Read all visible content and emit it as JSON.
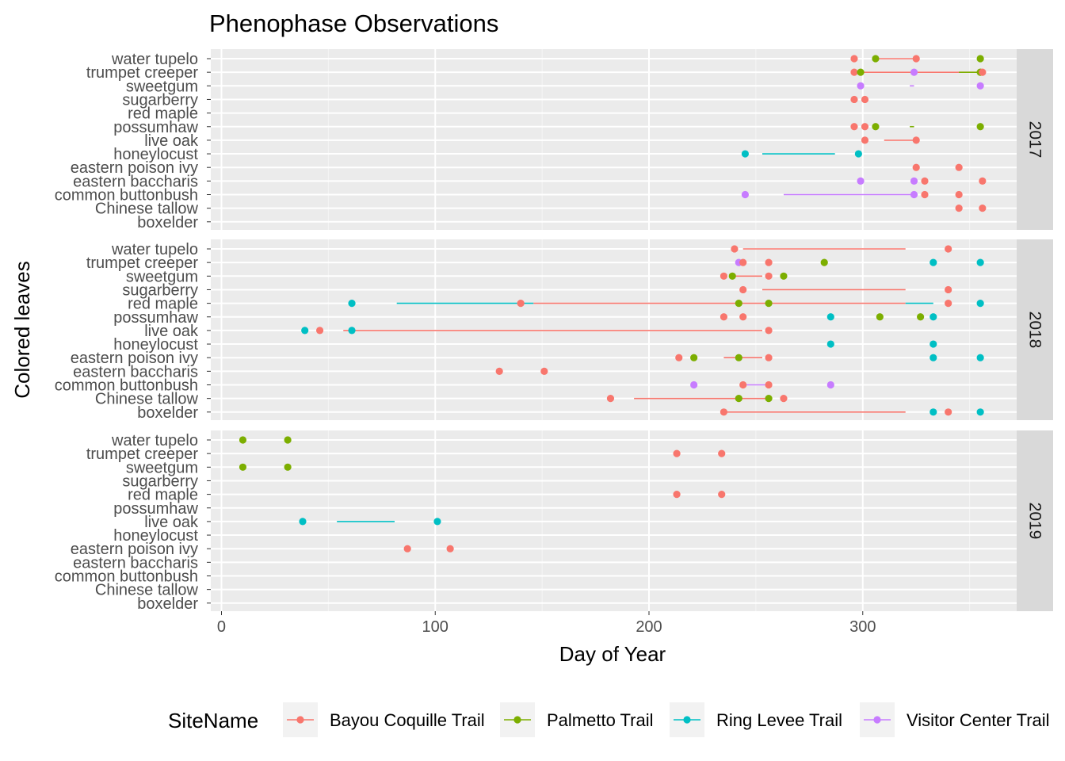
{
  "chart_data": {
    "type": "scatter",
    "title": "Phenophase Observations",
    "xlabel": "Day of Year",
    "ylabel": "Colored leaves",
    "xlim": [
      -5,
      372
    ],
    "xticks": [
      0,
      100,
      200,
      300
    ],
    "grid": true,
    "legend": {
      "title": "SiteName",
      "placement": "bottom",
      "entries": [
        {
          "name": "Bayou Coquille Trail",
          "color": "#F8766D"
        },
        {
          "name": "Palmetto Trail",
          "color": "#7CAE00"
        },
        {
          "name": "Ring Levee Trail",
          "color": "#00BFC4"
        },
        {
          "name": "Visitor Center Trail",
          "color": "#C77CFF"
        }
      ]
    },
    "categories": [
      "water tupelo",
      "trumpet creeper",
      "sweetgum",
      "sugarberry",
      "red maple",
      "possumhaw",
      "live oak",
      "honeylocust",
      "eastern poison ivy",
      "eastern baccharis",
      "common buttonbush",
      "Chinese tallow",
      "boxelder"
    ],
    "panels": [
      {
        "label": "2017",
        "points": [
          {
            "c": 0,
            "x": 296,
            "s": 0
          },
          {
            "c": 0,
            "x": 306,
            "s": 1
          },
          {
            "c": 0,
            "x": 325,
            "s": 0
          },
          {
            "c": 0,
            "x": 355,
            "s": 1
          },
          {
            "c": 1,
            "x": 296,
            "s": 0
          },
          {
            "c": 1,
            "x": 299,
            "s": 1
          },
          {
            "c": 1,
            "x": 324,
            "s": 3
          },
          {
            "c": 1,
            "x": 355,
            "s": 1
          },
          {
            "c": 1,
            "x": 356,
            "s": 0
          },
          {
            "c": 2,
            "x": 299,
            "s": 3
          },
          {
            "c": 2,
            "x": 355,
            "s": 3
          },
          {
            "c": 3,
            "x": 296,
            "s": 0
          },
          {
            "c": 3,
            "x": 301,
            "s": 0
          },
          {
            "c": 5,
            "x": 296,
            "s": 0
          },
          {
            "c": 5,
            "x": 301,
            "s": 0
          },
          {
            "c": 5,
            "x": 306,
            "s": 1
          },
          {
            "c": 5,
            "x": 355,
            "s": 1
          },
          {
            "c": 6,
            "x": 301,
            "s": 0
          },
          {
            "c": 6,
            "x": 325,
            "s": 0
          },
          {
            "c": 7,
            "x": 245,
            "s": 2
          },
          {
            "c": 7,
            "x": 298,
            "s": 2
          },
          {
            "c": 8,
            "x": 325,
            "s": 0
          },
          {
            "c": 8,
            "x": 345,
            "s": 0
          },
          {
            "c": 9,
            "x": 299,
            "s": 3
          },
          {
            "c": 9,
            "x": 324,
            "s": 3
          },
          {
            "c": 9,
            "x": 329,
            "s": 0
          },
          {
            "c": 9,
            "x": 356,
            "s": 0
          },
          {
            "c": 10,
            "x": 245,
            "s": 3
          },
          {
            "c": 10,
            "x": 324,
            "s": 3
          },
          {
            "c": 10,
            "x": 329,
            "s": 0
          },
          {
            "c": 10,
            "x": 345,
            "s": 0
          },
          {
            "c": 11,
            "x": 345,
            "s": 0
          },
          {
            "c": 11,
            "x": 356,
            "s": 0
          }
        ],
        "segments": [
          {
            "c": 0,
            "x1": 306,
            "x2": 325,
            "s": 0
          },
          {
            "c": 1,
            "x1": 299,
            "x2": 355,
            "s": 0
          },
          {
            "c": 1,
            "x1": 345,
            "x2": 355,
            "s": 1
          },
          {
            "c": 2,
            "x1": 322,
            "x2": 324,
            "s": 3
          },
          {
            "c": 5,
            "x1": 322,
            "x2": 324,
            "s": 1
          },
          {
            "c": 6,
            "x1": 310,
            "x2": 325,
            "s": 0
          },
          {
            "c": 7,
            "x1": 253,
            "x2": 287,
            "s": 2
          },
          {
            "c": 10,
            "x1": 263,
            "x2": 324,
            "s": 3
          }
        ]
      },
      {
        "label": "2018",
        "points": [
          {
            "c": 0,
            "x": 240,
            "s": 0
          },
          {
            "c": 0,
            "x": 340,
            "s": 0
          },
          {
            "c": 1,
            "x": 242,
            "s": 3
          },
          {
            "c": 1,
            "x": 244,
            "s": 0
          },
          {
            "c": 1,
            "x": 256,
            "s": 0
          },
          {
            "c": 1,
            "x": 282,
            "s": 1
          },
          {
            "c": 1,
            "x": 333,
            "s": 2
          },
          {
            "c": 1,
            "x": 355,
            "s": 2
          },
          {
            "c": 2,
            "x": 235,
            "s": 0
          },
          {
            "c": 2,
            "x": 239,
            "s": 1
          },
          {
            "c": 2,
            "x": 256,
            "s": 0
          },
          {
            "c": 2,
            "x": 263,
            "s": 1
          },
          {
            "c": 3,
            "x": 244,
            "s": 0
          },
          {
            "c": 3,
            "x": 340,
            "s": 0
          },
          {
            "c": 4,
            "x": 61,
            "s": 2
          },
          {
            "c": 4,
            "x": 140,
            "s": 0
          },
          {
            "c": 4,
            "x": 242,
            "s": 1
          },
          {
            "c": 4,
            "x": 256,
            "s": 1
          },
          {
            "c": 4,
            "x": 340,
            "s": 0
          },
          {
            "c": 4,
            "x": 355,
            "s": 2
          },
          {
            "c": 5,
            "x": 235,
            "s": 0
          },
          {
            "c": 5,
            "x": 244,
            "s": 0
          },
          {
            "c": 5,
            "x": 285,
            "s": 2
          },
          {
            "c": 5,
            "x": 308,
            "s": 1
          },
          {
            "c": 5,
            "x": 327,
            "s": 1
          },
          {
            "c": 5,
            "x": 333,
            "s": 2
          },
          {
            "c": 6,
            "x": 39,
            "s": 2
          },
          {
            "c": 6,
            "x": 46,
            "s": 0
          },
          {
            "c": 6,
            "x": 61,
            "s": 2
          },
          {
            "c": 6,
            "x": 256,
            "s": 0
          },
          {
            "c": 7,
            "x": 285,
            "s": 2
          },
          {
            "c": 7,
            "x": 333,
            "s": 2
          },
          {
            "c": 8,
            "x": 214,
            "s": 0
          },
          {
            "c": 8,
            "x": 221,
            "s": 1
          },
          {
            "c": 8,
            "x": 242,
            "s": 1
          },
          {
            "c": 8,
            "x": 256,
            "s": 0
          },
          {
            "c": 8,
            "x": 333,
            "s": 2
          },
          {
            "c": 8,
            "x": 355,
            "s": 2
          },
          {
            "c": 9,
            "x": 130,
            "s": 0
          },
          {
            "c": 9,
            "x": 151,
            "s": 0
          },
          {
            "c": 10,
            "x": 221,
            "s": 3
          },
          {
            "c": 10,
            "x": 244,
            "s": 0
          },
          {
            "c": 10,
            "x": 256,
            "s": 0
          },
          {
            "c": 10,
            "x": 285,
            "s": 3
          },
          {
            "c": 11,
            "x": 182,
            "s": 0
          },
          {
            "c": 11,
            "x": 242,
            "s": 1
          },
          {
            "c": 11,
            "x": 256,
            "s": 1
          },
          {
            "c": 11,
            "x": 263,
            "s": 0
          },
          {
            "c": 12,
            "x": 235,
            "s": 0
          },
          {
            "c": 12,
            "x": 333,
            "s": 2
          },
          {
            "c": 12,
            "x": 340,
            "s": 0
          },
          {
            "c": 12,
            "x": 355,
            "s": 2
          }
        ],
        "segments": [
          {
            "c": 0,
            "x1": 244,
            "x2": 320,
            "s": 0
          },
          {
            "c": 2,
            "x1": 239,
            "x2": 253,
            "s": 0
          },
          {
            "c": 3,
            "x1": 253,
            "x2": 320,
            "s": 0
          },
          {
            "c": 4,
            "x1": 82,
            "x2": 146,
            "s": 2
          },
          {
            "c": 4,
            "x1": 146,
            "x2": 320,
            "s": 0
          },
          {
            "c": 4,
            "x1": 320,
            "x2": 333,
            "s": 2
          },
          {
            "c": 6,
            "x1": 57,
            "x2": 253,
            "s": 0
          },
          {
            "c": 8,
            "x1": 235,
            "x2": 253,
            "s": 0
          },
          {
            "c": 10,
            "x1": 244,
            "x2": 256,
            "s": 3
          },
          {
            "c": 11,
            "x1": 193,
            "x2": 256,
            "s": 0
          },
          {
            "c": 12,
            "x1": 235,
            "x2": 320,
            "s": 0
          }
        ]
      },
      {
        "label": "2019",
        "points": [
          {
            "c": 0,
            "x": 10,
            "s": 1
          },
          {
            "c": 0,
            "x": 31,
            "s": 1
          },
          {
            "c": 1,
            "x": 213,
            "s": 0
          },
          {
            "c": 1,
            "x": 234,
            "s": 0
          },
          {
            "c": 2,
            "x": 10,
            "s": 1
          },
          {
            "c": 2,
            "x": 31,
            "s": 1
          },
          {
            "c": 4,
            "x": 213,
            "s": 0
          },
          {
            "c": 4,
            "x": 234,
            "s": 0
          },
          {
            "c": 6,
            "x": 38,
            "s": 2
          },
          {
            "c": 6,
            "x": 101,
            "s": 2
          },
          {
            "c": 8,
            "x": 87,
            "s": 0
          },
          {
            "c": 8,
            "x": 107,
            "s": 0
          }
        ],
        "segments": [
          {
            "c": 6,
            "x1": 54,
            "x2": 81,
            "s": 2
          }
        ]
      }
    ]
  }
}
